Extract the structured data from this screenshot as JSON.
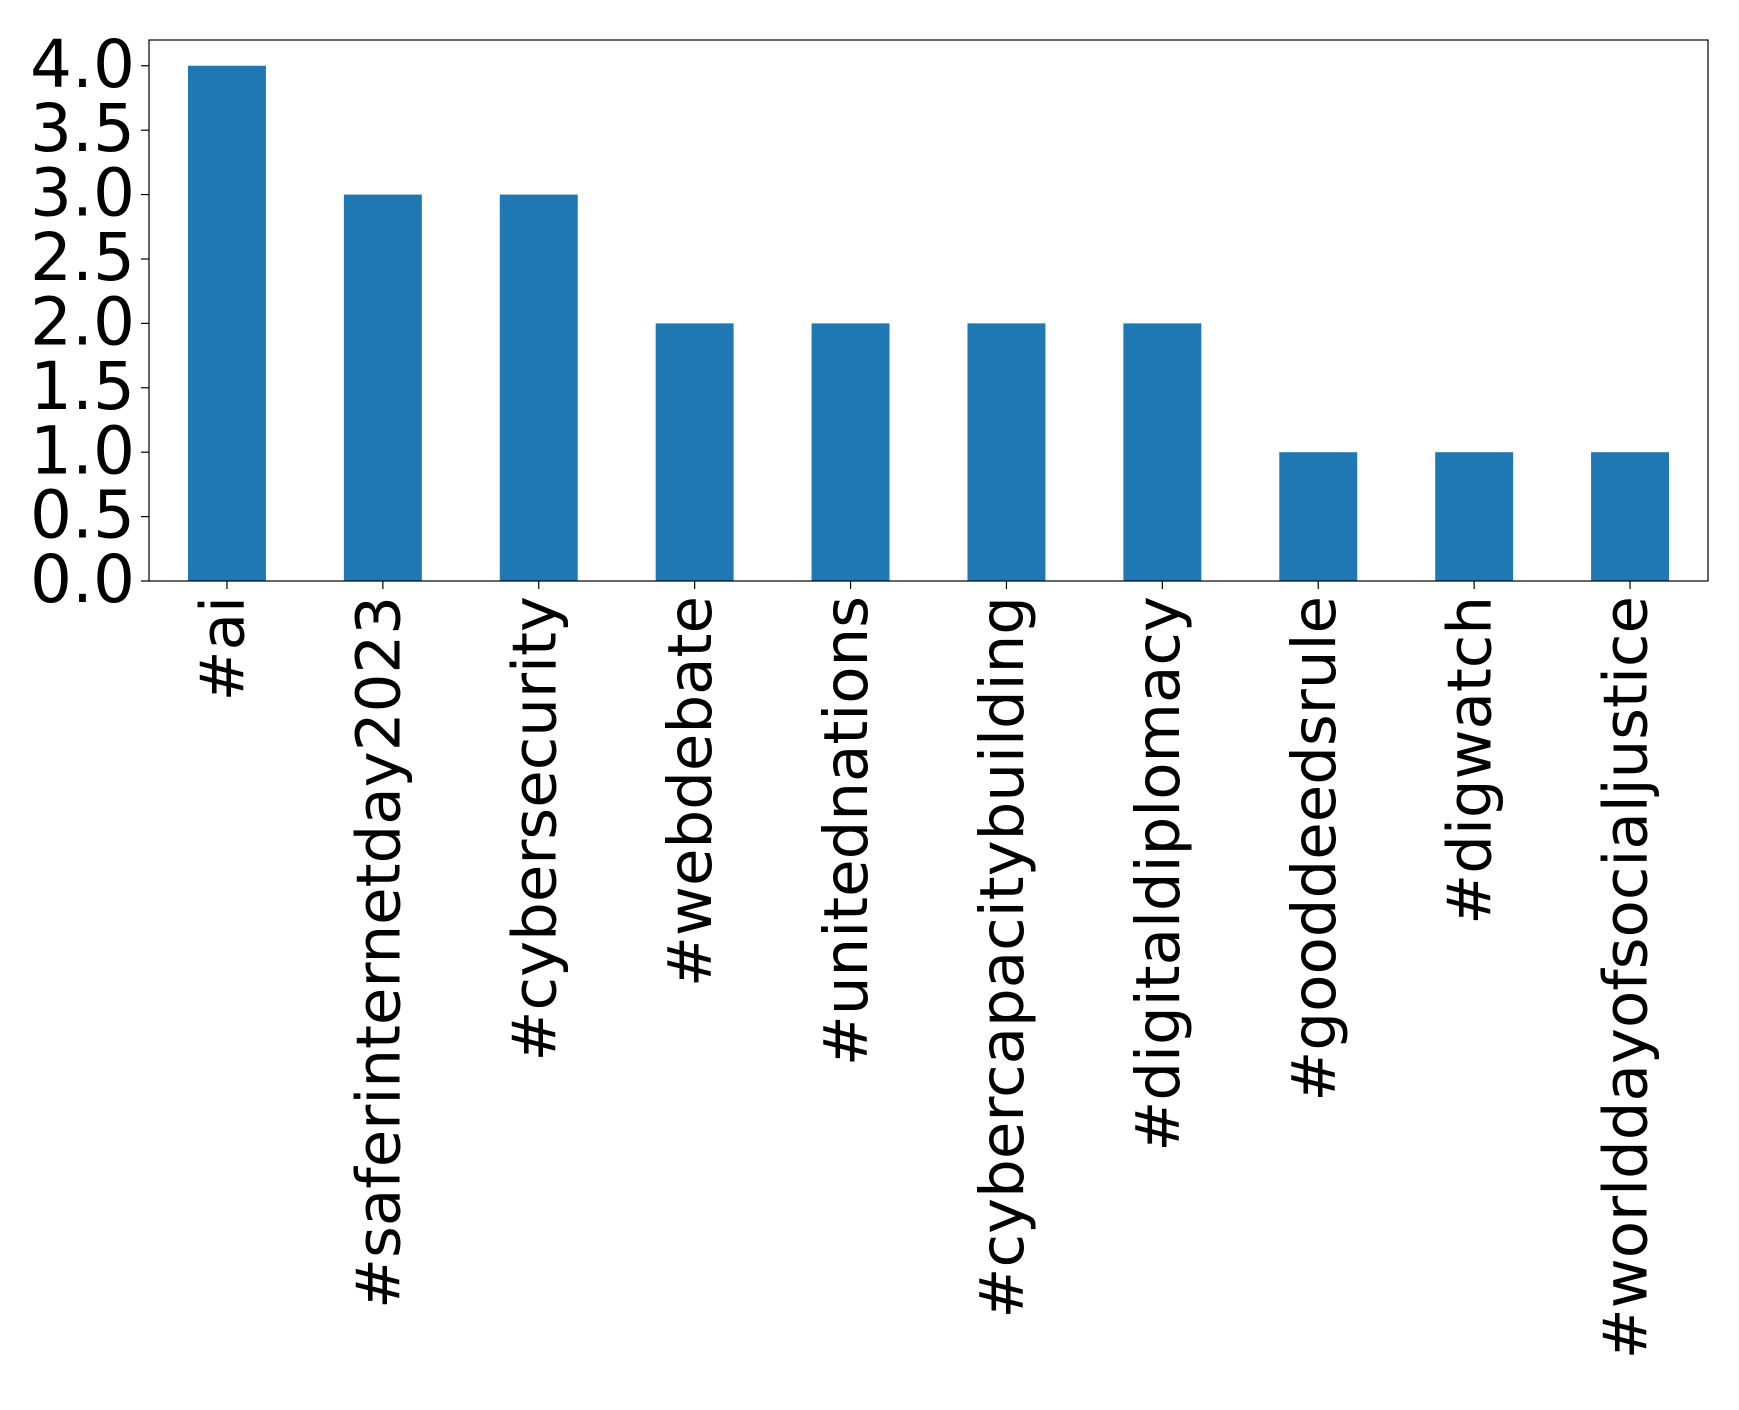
{
  "chart_data": {
    "type": "bar",
    "categories": [
      "#ai",
      "#saferinternetday2023",
      "#cybersecurity",
      "#webdebate",
      "#unitednations",
      "#cybercapacitybuilding",
      "#digitaldiplomacy",
      "#gooddeedsrule",
      "#digwatch",
      "#worlddayofsocialjustice"
    ],
    "values": [
      4,
      3,
      3,
      2,
      2,
      2,
      2,
      1,
      1,
      1
    ],
    "color": "#1f77b4",
    "ylim": [
      0,
      4.2
    ],
    "yticks": [
      {
        "value": 0,
        "label": "0.0"
      },
      0.5,
      {
        "value": 1,
        "label": "1.0"
      },
      1.5,
      {
        "value": 2,
        "label": "2.0"
      },
      2.5,
      {
        "value": 3,
        "label": "3.0"
      },
      3.5,
      {
        "value": 4,
        "label": "4.0"
      }
    ],
    "grid": false
  }
}
